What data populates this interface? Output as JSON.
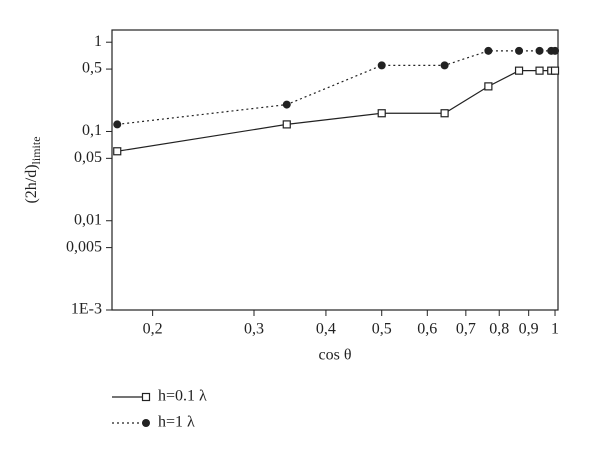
{
  "chart_data": {
    "type": "line",
    "x_label": "cos θ",
    "y_label": "(2h/d)",
    "y_label_sub": "limite",
    "x": [
      0.1736,
      0.342,
      0.5,
      0.643,
      0.766,
      0.866,
      0.94,
      0.985,
      1
    ],
    "series": [
      {
        "name": "h=0.1 λ",
        "color": "#222222",
        "marker": "square",
        "dash": "solid",
        "values": [
          0.06,
          0.12,
          0.16,
          0.16,
          0.32,
          0.48,
          0.48,
          0.48,
          0.48
        ]
      },
      {
        "name": "h=1 λ",
        "color": "#222222",
        "marker": "circle",
        "dash": "dotted",
        "values": [
          0.12,
          0.2,
          0.55,
          0.55,
          0.8,
          0.8,
          0.8,
          0.8,
          0.8
        ]
      }
    ],
    "xscale": "log",
    "yscale": "log",
    "xlim": [
      0.17,
      1.012
    ],
    "ylim": [
      0.001,
      1.37
    ],
    "xticks": [
      {
        "value": 0.2,
        "label": "0,2"
      },
      {
        "value": 0.3,
        "label": "0,3"
      },
      {
        "value": 0.4,
        "label": "0,4"
      },
      {
        "value": 0.5,
        "label": "0,5"
      },
      {
        "value": 0.6,
        "label": "0,6"
      },
      {
        "value": 0.7,
        "label": "0,7"
      },
      {
        "value": 0.8,
        "label": "0,8"
      },
      {
        "value": 0.9,
        "label": "0,9"
      },
      1
    ],
    "yticks": [
      1,
      {
        "value": 0.5,
        "label": "0,5"
      },
      {
        "value": 0.1,
        "label": "0,1"
      },
      {
        "value": 0.05,
        "label": "0,05"
      },
      {
        "value": 0.01,
        "label": "0,01"
      },
      {
        "value": 0.005,
        "label": "0,005"
      },
      {
        "value": 0.001,
        "label": "1E-3"
      }
    ],
    "legend": "bottom-left"
  }
}
